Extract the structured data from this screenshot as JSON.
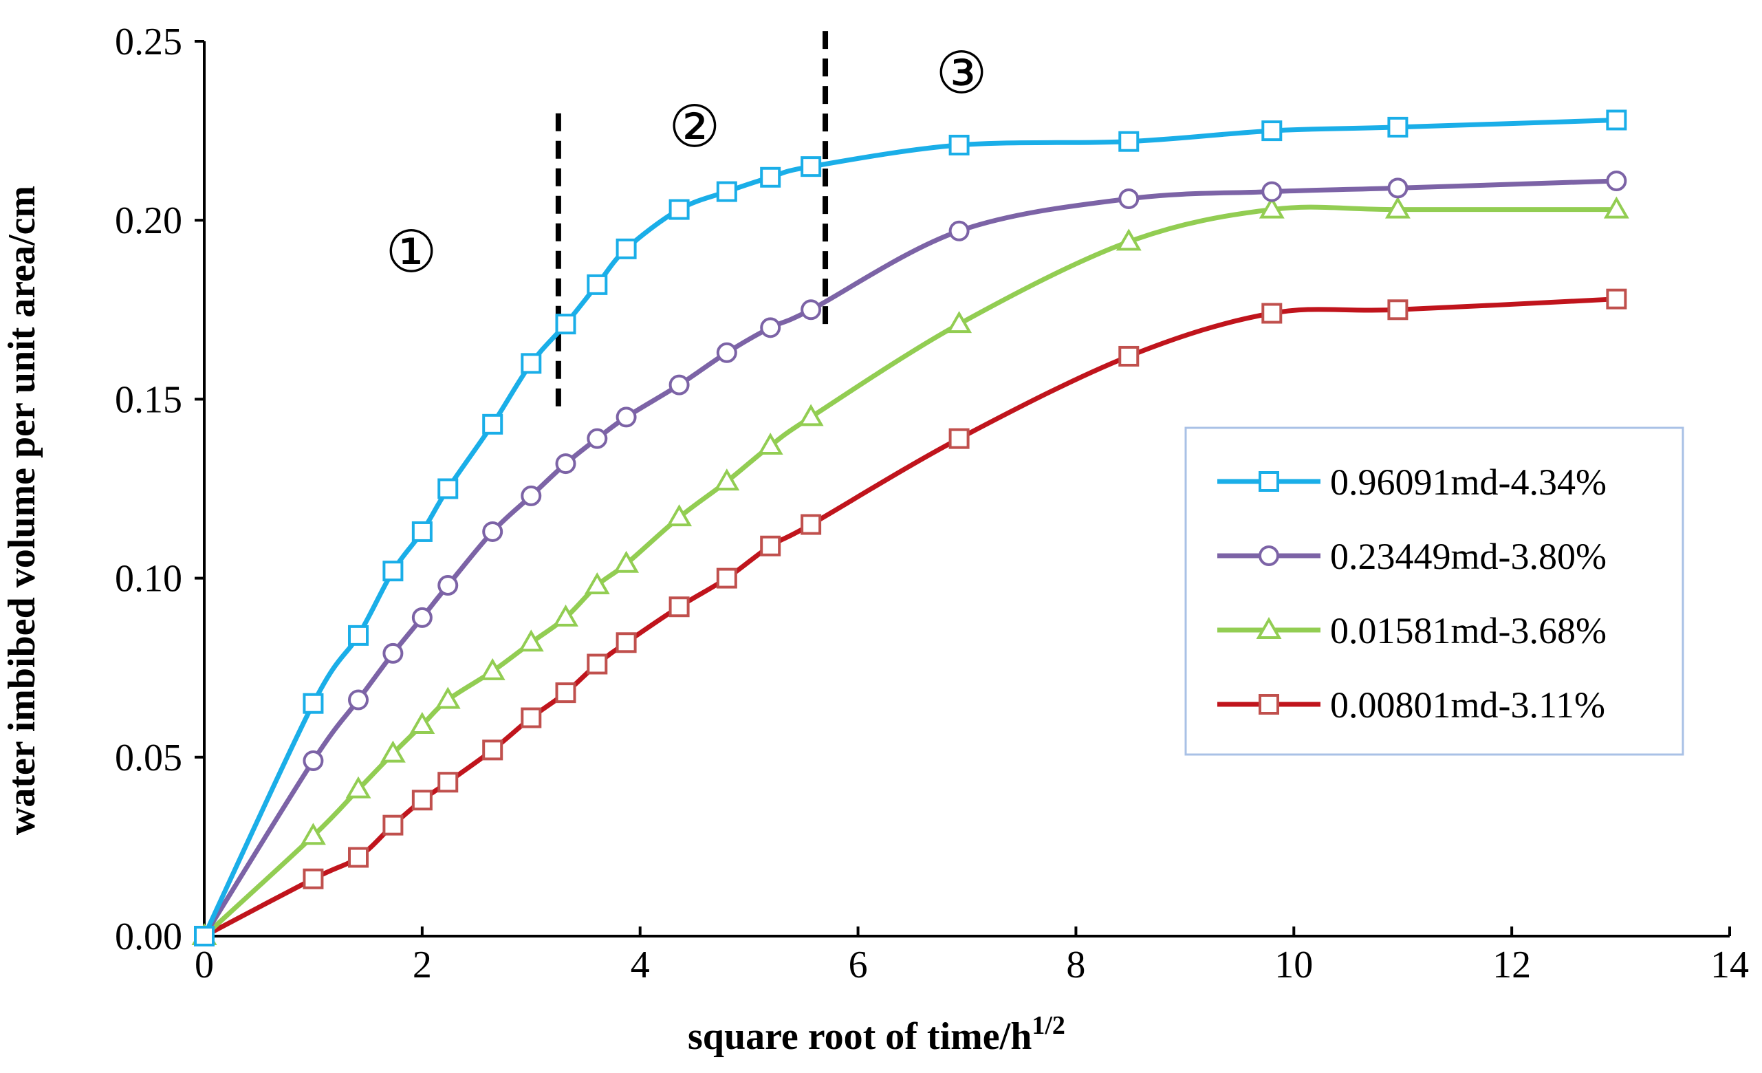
{
  "chart_data": {
    "type": "line",
    "title": "",
    "xlabel": "square root of time/h",
    "xlabel_sup": "1/2",
    "ylabel": "water imbibed volume per unit area/cm",
    "xlim": [
      0,
      14
    ],
    "ylim": [
      0,
      0.25
    ],
    "xticks": [
      0,
      2,
      4,
      6,
      8,
      10,
      12,
      14
    ],
    "yticks": [
      0.0,
      0.05,
      0.1,
      0.15,
      0.2,
      0.25
    ],
    "xtick_labels": [
      "0",
      "2",
      "4",
      "6",
      "8",
      "10",
      "12",
      "14"
    ],
    "ytick_labels": [
      "0.00",
      "0.05",
      "0.10",
      "0.15",
      "0.20",
      "0.25"
    ],
    "grid": false,
    "legend_position": "right",
    "series": [
      {
        "name": "0.96091md-4.34%",
        "color": "#1aaee8",
        "marker": "square",
        "x": [
          0,
          1,
          1.414,
          1.732,
          2,
          2.236,
          2.646,
          3,
          3.317,
          3.606,
          3.873,
          4.359,
          4.796,
          5.196,
          5.568,
          6.928,
          8.485,
          9.798,
          10.954,
          12.961
        ],
        "y": [
          0,
          0.065,
          0.084,
          0.102,
          0.113,
          0.125,
          0.143,
          0.16,
          0.171,
          0.182,
          0.192,
          0.203,
          0.208,
          0.212,
          0.215,
          0.221,
          0.222,
          0.225,
          0.226,
          0.228
        ]
      },
      {
        "name": "0.23449md-3.80%",
        "color": "#7c63a6",
        "marker": "circle",
        "x": [
          0,
          1,
          1.414,
          1.732,
          2,
          2.236,
          2.646,
          3,
          3.317,
          3.606,
          3.873,
          4.359,
          4.796,
          5.196,
          5.568,
          6.928,
          8.485,
          9.798,
          10.954,
          12.961
        ],
        "y": [
          0,
          0.049,
          0.066,
          0.079,
          0.089,
          0.098,
          0.113,
          0.123,
          0.132,
          0.139,
          0.145,
          0.154,
          0.163,
          0.17,
          0.175,
          0.197,
          0.206,
          0.208,
          0.209,
          0.211
        ]
      },
      {
        "name": "0.01581md-3.68%",
        "color": "#92cd52",
        "marker": "triangle",
        "x": [
          0,
          1,
          1.414,
          1.732,
          2,
          2.236,
          2.646,
          3,
          3.317,
          3.606,
          3.873,
          4.359,
          4.796,
          5.196,
          5.568,
          6.928,
          8.485,
          9.798,
          10.954,
          12.961
        ],
        "y": [
          0,
          0.028,
          0.041,
          0.051,
          0.059,
          0.066,
          0.074,
          0.082,
          0.089,
          0.098,
          0.104,
          0.117,
          0.127,
          0.137,
          0.145,
          0.171,
          0.194,
          0.203,
          0.203,
          0.203
        ]
      },
      {
        "name": "0.00801md-3.11%",
        "color": "#c0141c",
        "marker_color": "#c0504d",
        "marker": "square",
        "x": [
          0,
          1,
          1.414,
          1.732,
          2,
          2.236,
          2.646,
          3,
          3.317,
          3.606,
          3.873,
          4.359,
          4.796,
          5.196,
          5.568,
          6.928,
          8.485,
          9.798,
          10.954,
          12.961
        ],
        "y": [
          0,
          0.016,
          0.022,
          0.031,
          0.038,
          0.043,
          0.052,
          0.061,
          0.068,
          0.076,
          0.082,
          0.092,
          0.1,
          0.109,
          0.115,
          0.139,
          0.162,
          0.174,
          0.175,
          0.178
        ]
      }
    ],
    "dividers": [
      {
        "x": 3.25,
        "y_from": 0.148,
        "y_to": 0.232
      },
      {
        "x": 5.7,
        "y_from": 0.171,
        "y_to": 0.254
      }
    ],
    "annotations": [
      {
        "text": "①",
        "x": 1.9,
        "y": 0.19
      },
      {
        "text": "②",
        "x": 4.5,
        "y": 0.225
      },
      {
        "text": "③",
        "x": 6.95,
        "y": 0.24
      }
    ]
  }
}
